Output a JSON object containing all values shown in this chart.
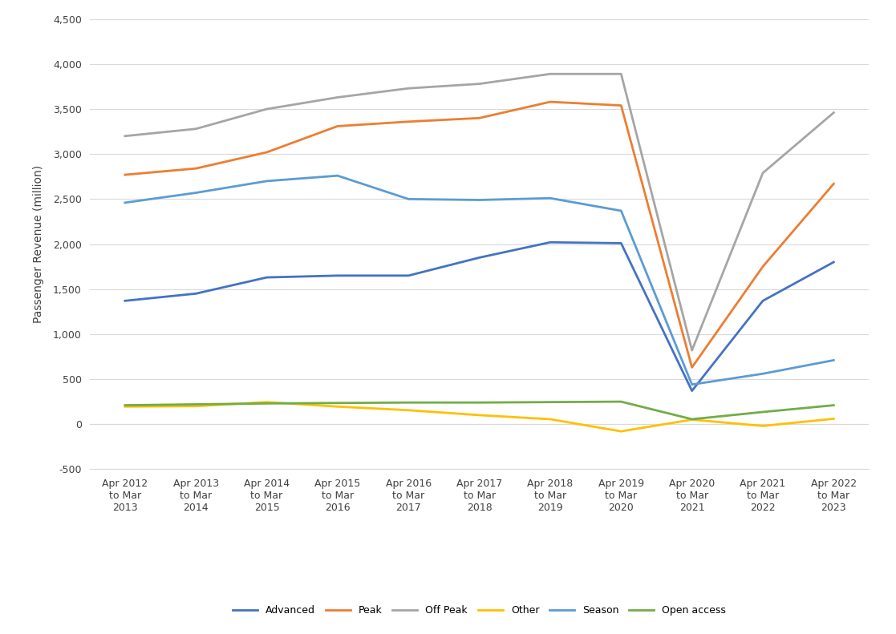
{
  "x_labels": [
    "Apr 2012\nto Mar\n2013",
    "Apr 2013\nto Mar\n2014",
    "Apr 2014\nto Mar\n2015",
    "Apr 2015\nto Mar\n2016",
    "Apr 2016\nto Mar\n2017",
    "Apr 2017\nto Mar\n2018",
    "Apr 2018\nto Mar\n2019",
    "Apr 2019\nto Mar\n2020",
    "Apr 2020\nto Mar\n2021",
    "Apr 2021\nto Mar\n2022",
    "Apr 2022\nto Mar\n2023"
  ],
  "series": {
    "Advanced": {
      "color": "#4472C4",
      "values": [
        1370,
        1450,
        1630,
        1650,
        1650,
        1850,
        2020,
        2010,
        370,
        1370,
        1800
      ]
    },
    "Peak": {
      "color": "#ED7D31",
      "values": [
        2770,
        2840,
        3020,
        3310,
        3360,
        3400,
        3580,
        3540,
        630,
        1750,
        2670
      ]
    },
    "Off Peak": {
      "color": "#A5A5A5",
      "values": [
        3200,
        3280,
        3500,
        3630,
        3730,
        3780,
        3890,
        3890,
        820,
        2790,
        3460
      ]
    },
    "Other": {
      "color": "#FFC000",
      "values": [
        195,
        200,
        245,
        195,
        155,
        100,
        55,
        -80,
        50,
        -20,
        60
      ]
    },
    "Season": {
      "color": "#5B9BD5",
      "values": [
        2460,
        2570,
        2700,
        2760,
        2500,
        2490,
        2510,
        2370,
        440,
        560,
        710
      ]
    },
    "Open access": {
      "color": "#70AD47",
      "values": [
        210,
        220,
        230,
        235,
        240,
        240,
        245,
        250,
        55,
        135,
        210
      ]
    }
  },
  "ylabel": "Passenger Revenue (million)",
  "ylim": [
    -500,
    4500
  ],
  "yticks": [
    -500,
    0,
    500,
    1000,
    1500,
    2000,
    2500,
    3000,
    3500,
    4000,
    4500
  ],
  "ytick_labels": [
    "-500",
    "0",
    "500",
    "1,000",
    "1,500",
    "2,000",
    "2,500",
    "3,000",
    "3,500",
    "4,000",
    "4,500"
  ],
  "background_color": "#FFFFFF",
  "grid_color": "#D9D9D9",
  "line_width": 2.0
}
